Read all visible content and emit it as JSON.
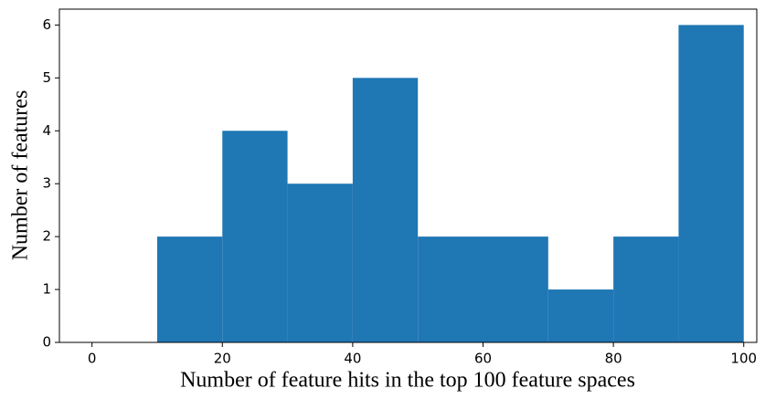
{
  "chart_data": {
    "type": "histogram",
    "xlabel": "Number of feature hits in the top 100 feature spaces",
    "ylabel": "Number of features",
    "bins": [
      10,
      20,
      30,
      40,
      50,
      60,
      70,
      80,
      90,
      100
    ],
    "counts": [
      2,
      4,
      3,
      5,
      2,
      2,
      1,
      2,
      6
    ],
    "color": "#1f77b4",
    "xlim": [
      -5,
      102
    ],
    "xticks": [
      0,
      20,
      40,
      60,
      80,
      100
    ],
    "ylim": [
      0,
      6.3
    ],
    "yticks": [
      0,
      1,
      2,
      3,
      4,
      5,
      6
    ],
    "grid": false
  }
}
